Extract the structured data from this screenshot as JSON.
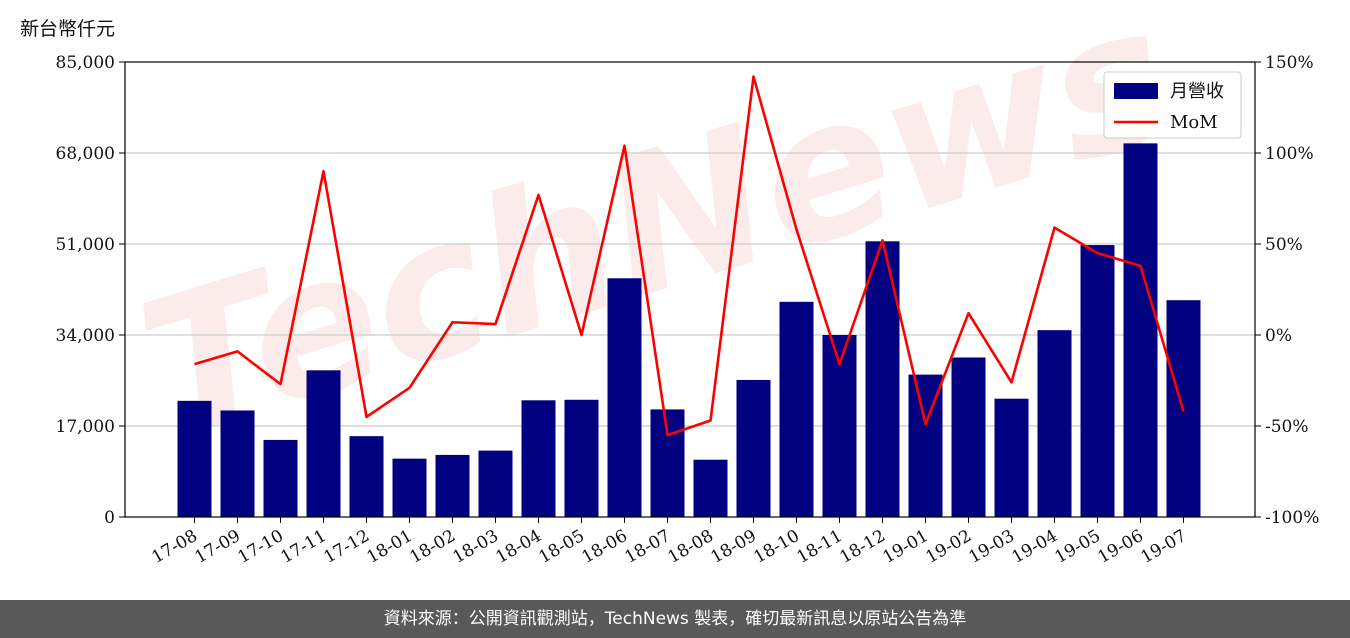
{
  "chart_data": {
    "type": "bar",
    "unit_label": "新台幣仟元",
    "categories": [
      "17-08",
      "17-09",
      "17-10",
      "17-11",
      "17-12",
      "18-01",
      "18-02",
      "18-03",
      "18-04",
      "18-05",
      "18-06",
      "18-07",
      "18-08",
      "18-09",
      "18-10",
      "18-11",
      "18-12",
      "19-01",
      "19-02",
      "19-03",
      "19-04",
      "19-05",
      "19-06",
      "19-07"
    ],
    "series": [
      {
        "name": "月營收",
        "type": "bar",
        "axis": "left",
        "color": "#000080",
        "values": [
          21700,
          19900,
          14400,
          27400,
          15100,
          10900,
          11600,
          12400,
          21800,
          21900,
          44600,
          20100,
          10700,
          25600,
          40200,
          34000,
          51500,
          26600,
          29800,
          22100,
          34900,
          50800,
          69800,
          40500
        ]
      },
      {
        "name": "MoM",
        "type": "line",
        "axis": "right",
        "color": "#ff0000",
        "values": [
          -16,
          -9,
          -27,
          90,
          -45,
          -29,
          7,
          6,
          77,
          0,
          104,
          -55,
          -47,
          142,
          58,
          -16,
          52,
          -49,
          12,
          -26,
          59,
          45,
          38,
          -42
        ]
      }
    ],
    "y_left": {
      "min": 0,
      "max": 85000,
      "ticks": [
        0,
        17000,
        34000,
        51000,
        68000,
        85000
      ],
      "tick_labels": [
        "0",
        "17,000",
        "34,000",
        "51,000",
        "68,000",
        "85,000"
      ]
    },
    "y_right": {
      "min": -100,
      "max": 150,
      "ticks": [
        -100,
        -50,
        0,
        50,
        100,
        150
      ],
      "tick_labels": [
        "-100%",
        "-50%",
        "0%",
        "50%",
        "100%",
        "150%"
      ]
    },
    "grid": "horizontal",
    "legend_position": "top-right",
    "watermark": "TechNews"
  },
  "footer": {
    "text": "資料來源：公開資訊觀測站，TechNews 製表，確切最新訊息以原站公告為準"
  },
  "colors": {
    "bar": "#000080",
    "line": "#ff0000",
    "footer_bg": "#595959"
  }
}
